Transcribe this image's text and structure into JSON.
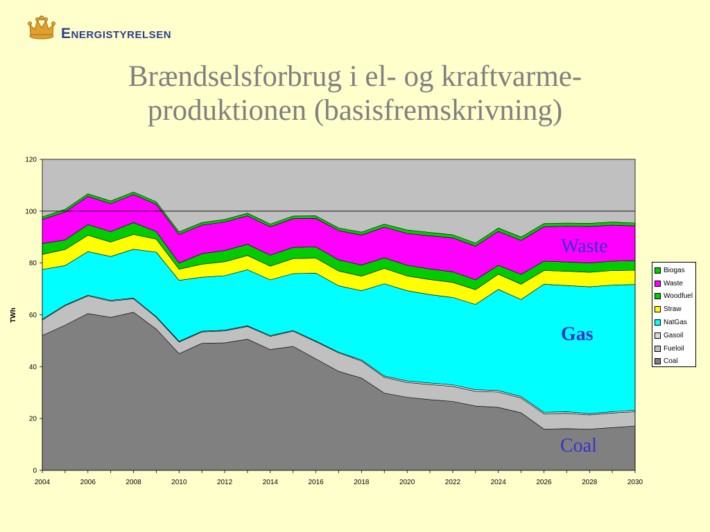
{
  "header": {
    "logo_text": "Energistyrelsen",
    "logo_icon": "crown-icon"
  },
  "slide": {
    "title_line1": "Brændselsforbrug i el- og kraftvarme-",
    "title_line2": "produktionen (basisfremskrivning)"
  },
  "annotations": {
    "waste": "Waste",
    "gas": "Gas",
    "coal": "Coal"
  },
  "colors": {
    "background": "#ffffcc",
    "plot_area": "#c0c0c0",
    "annotation": "#3333cc",
    "title": "#808080"
  },
  "chart_data": {
    "type": "area",
    "stacked": true,
    "title": "",
    "xlabel": "",
    "ylabel": "TWh",
    "ylim": [
      0,
      120
    ],
    "xlim": [
      2004,
      2030
    ],
    "y_ticks": [
      0,
      20,
      40,
      60,
      80,
      100,
      120
    ],
    "x_ticks": [
      2004,
      2006,
      2008,
      2010,
      2012,
      2014,
      2016,
      2018,
      2020,
      2022,
      2024,
      2026,
      2028,
      2030
    ],
    "grid": true,
    "legend_position": "right",
    "x": [
      2004,
      2005,
      2006,
      2007,
      2008,
      2009,
      2010,
      2011,
      2012,
      2013,
      2014,
      2015,
      2016,
      2017,
      2018,
      2019,
      2020,
      2021,
      2022,
      2023,
      2024,
      2025,
      2026,
      2027,
      2028,
      2029,
      2030
    ],
    "series": [
      {
        "name": "Coal",
        "color": "#808080",
        "values": [
          52,
          56,
          60.5,
          59,
          61,
          54.5,
          45,
          49,
          49.2,
          50.6,
          46.6,
          47.8,
          43,
          38.2,
          35.6,
          29.8,
          28.2,
          27.3,
          26.6,
          24.8,
          24.3,
          22.2,
          15.9,
          16.1,
          15.9,
          16.5,
          17.1
        ]
      },
      {
        "name": "Fueloil",
        "color": "#c0c0c0",
        "values": [
          6,
          7.5,
          6.8,
          6.3,
          5.2,
          4.5,
          4.5,
          4.4,
          4.6,
          4.9,
          5.1,
          5.9,
          6.6,
          7.1,
          6.6,
          6.1,
          5.7,
          5.8,
          5.8,
          5.7,
          5.9,
          5.7,
          5.9,
          5.9,
          5.5,
          5.6,
          5.5
        ]
      },
      {
        "name": "Gasoil",
        "color": "#dcdcdc",
        "values": [
          0.3,
          0.3,
          0.3,
          0.3,
          0.3,
          0.3,
          0.3,
          0.3,
          0.3,
          0.3,
          0.3,
          0.3,
          0.3,
          0.3,
          0.4,
          0.5,
          0.6,
          0.6,
          0.6,
          0.6,
          0.6,
          0.6,
          0.6,
          0.6,
          0.5,
          0.5,
          0.6
        ]
      },
      {
        "name": "NatGas",
        "color": "#00ffff",
        "values": [
          19.2,
          15.2,
          16.8,
          16.9,
          18.8,
          24.9,
          23.5,
          20.8,
          21,
          21.6,
          21.5,
          21.9,
          26.2,
          25.6,
          26.7,
          35.6,
          34.8,
          34.1,
          33.7,
          32.9,
          39,
          37.4,
          49.4,
          48.7,
          48.9,
          48.9,
          48.5
        ]
      },
      {
        "name": "Straw",
        "color": "#ffff00",
        "values": [
          5.8,
          6.2,
          6.3,
          5.6,
          5.7,
          5,
          4.3,
          5,
          5.4,
          5.5,
          5.3,
          5.8,
          5.8,
          5.7,
          5.6,
          5.9,
          5.7,
          5.8,
          5.8,
          5.7,
          5.9,
          5.9,
          5.3,
          5.5,
          5.6,
          5.6,
          5.5
        ]
      },
      {
        "name": "Woodfuel",
        "color": "#00cc00",
        "values": [
          4.2,
          3.7,
          4.1,
          4,
          4.6,
          2.9,
          2.4,
          4.1,
          4.3,
          4.3,
          4.2,
          4.3,
          4.3,
          4.3,
          4.3,
          4.1,
          4.1,
          4.1,
          4.1,
          3.8,
          3.4,
          3.8,
          3.6,
          3.6,
          3.6,
          3.6,
          3.7
        ]
      },
      {
        "name": "Waste",
        "color": "#ff00ff",
        "values": [
          9.3,
          10.8,
          10.9,
          10.8,
          10.8,
          10.5,
          11,
          11,
          11,
          11,
          11,
          11.1,
          11,
          11.3,
          11.6,
          11.8,
          12.3,
          12.8,
          13.1,
          13,
          13.1,
          13.1,
          13.3,
          13.8,
          14.1,
          13.9,
          13.4
        ]
      },
      {
        "name": "Biogas",
        "color": "#00cc00",
        "values": [
          1,
          1,
          1,
          1,
          1,
          1,
          1,
          1,
          1,
          1,
          1,
          1,
          1,
          1,
          1.1,
          1.2,
          1.3,
          1.3,
          1.2,
          1.2,
          1.3,
          1.3,
          1.2,
          1.2,
          1.2,
          1.2,
          1.1
        ]
      }
    ]
  }
}
